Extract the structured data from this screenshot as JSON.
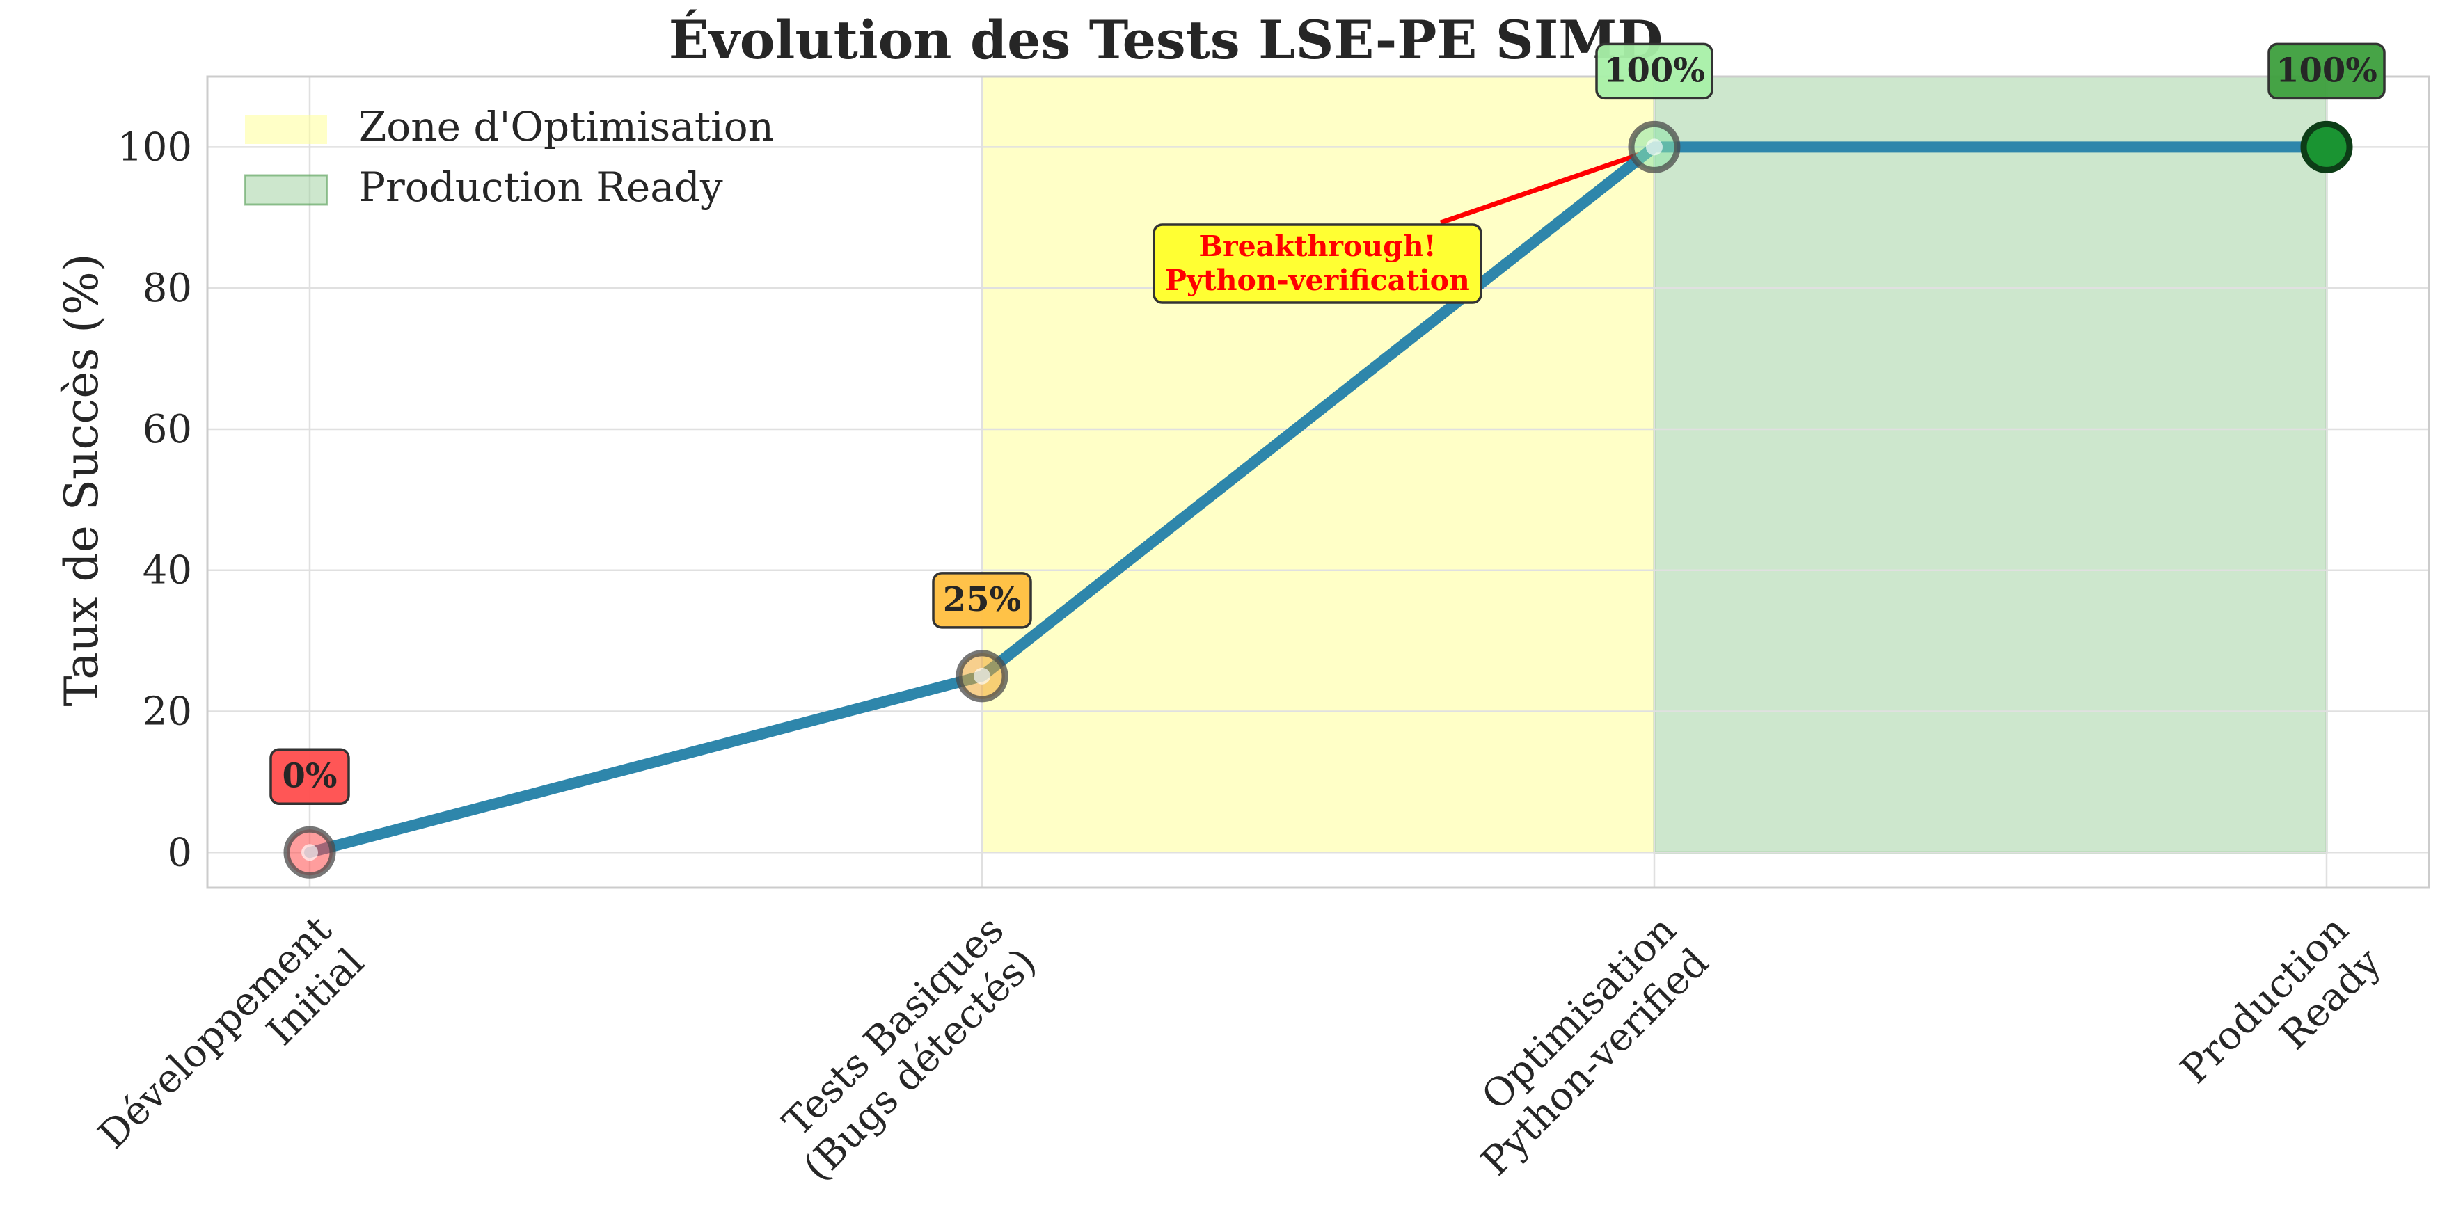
{
  "chart_data": {
    "type": "line",
    "title": "Évolution des Tests LSE-PE SIMD",
    "xlabel": "",
    "ylabel": "Taux de Succès (%)",
    "categories": [
      [
        "Développement",
        "Initial"
      ],
      [
        "Tests Basiques",
        "(Bugs détectés)"
      ],
      [
        "Optimisation",
        "Python-verified"
      ],
      [
        "Production",
        "Ready"
      ]
    ],
    "values": [
      0,
      25,
      100,
      100
    ],
    "point_labels": [
      "0%",
      "25%",
      "100%",
      "100%"
    ],
    "ylim": [
      -5,
      110
    ],
    "yticks": [
      0,
      20,
      40,
      60,
      80,
      100
    ],
    "grid": true,
    "line_color": "#2e86ab",
    "marker_colors": [
      "#ff4d4d",
      "#f0a830",
      "#8ee3a8",
      "#1a9432"
    ],
    "label_box_colors": [
      "#ff4d4d",
      "#ffbf40",
      "#a8f0a8",
      "#3d9f3d"
    ],
    "shaded_regions": [
      {
        "name": "Zone d'Optimisation",
        "from": 1,
        "to": 2,
        "color": "#ffff99"
      },
      {
        "name": "Production Ready",
        "from": 2,
        "to": 3,
        "color": "#9ccf9c"
      }
    ],
    "legend": {
      "placement": "top-left",
      "entries": [
        "Zone d'Optimisation",
        "Production Ready"
      ]
    },
    "annotation": {
      "lines": [
        "Breakthrough!",
        "Python-verification"
      ],
      "points_to_index": 2,
      "text_color": "#ff0000",
      "box_color": "#ffff33"
    }
  }
}
